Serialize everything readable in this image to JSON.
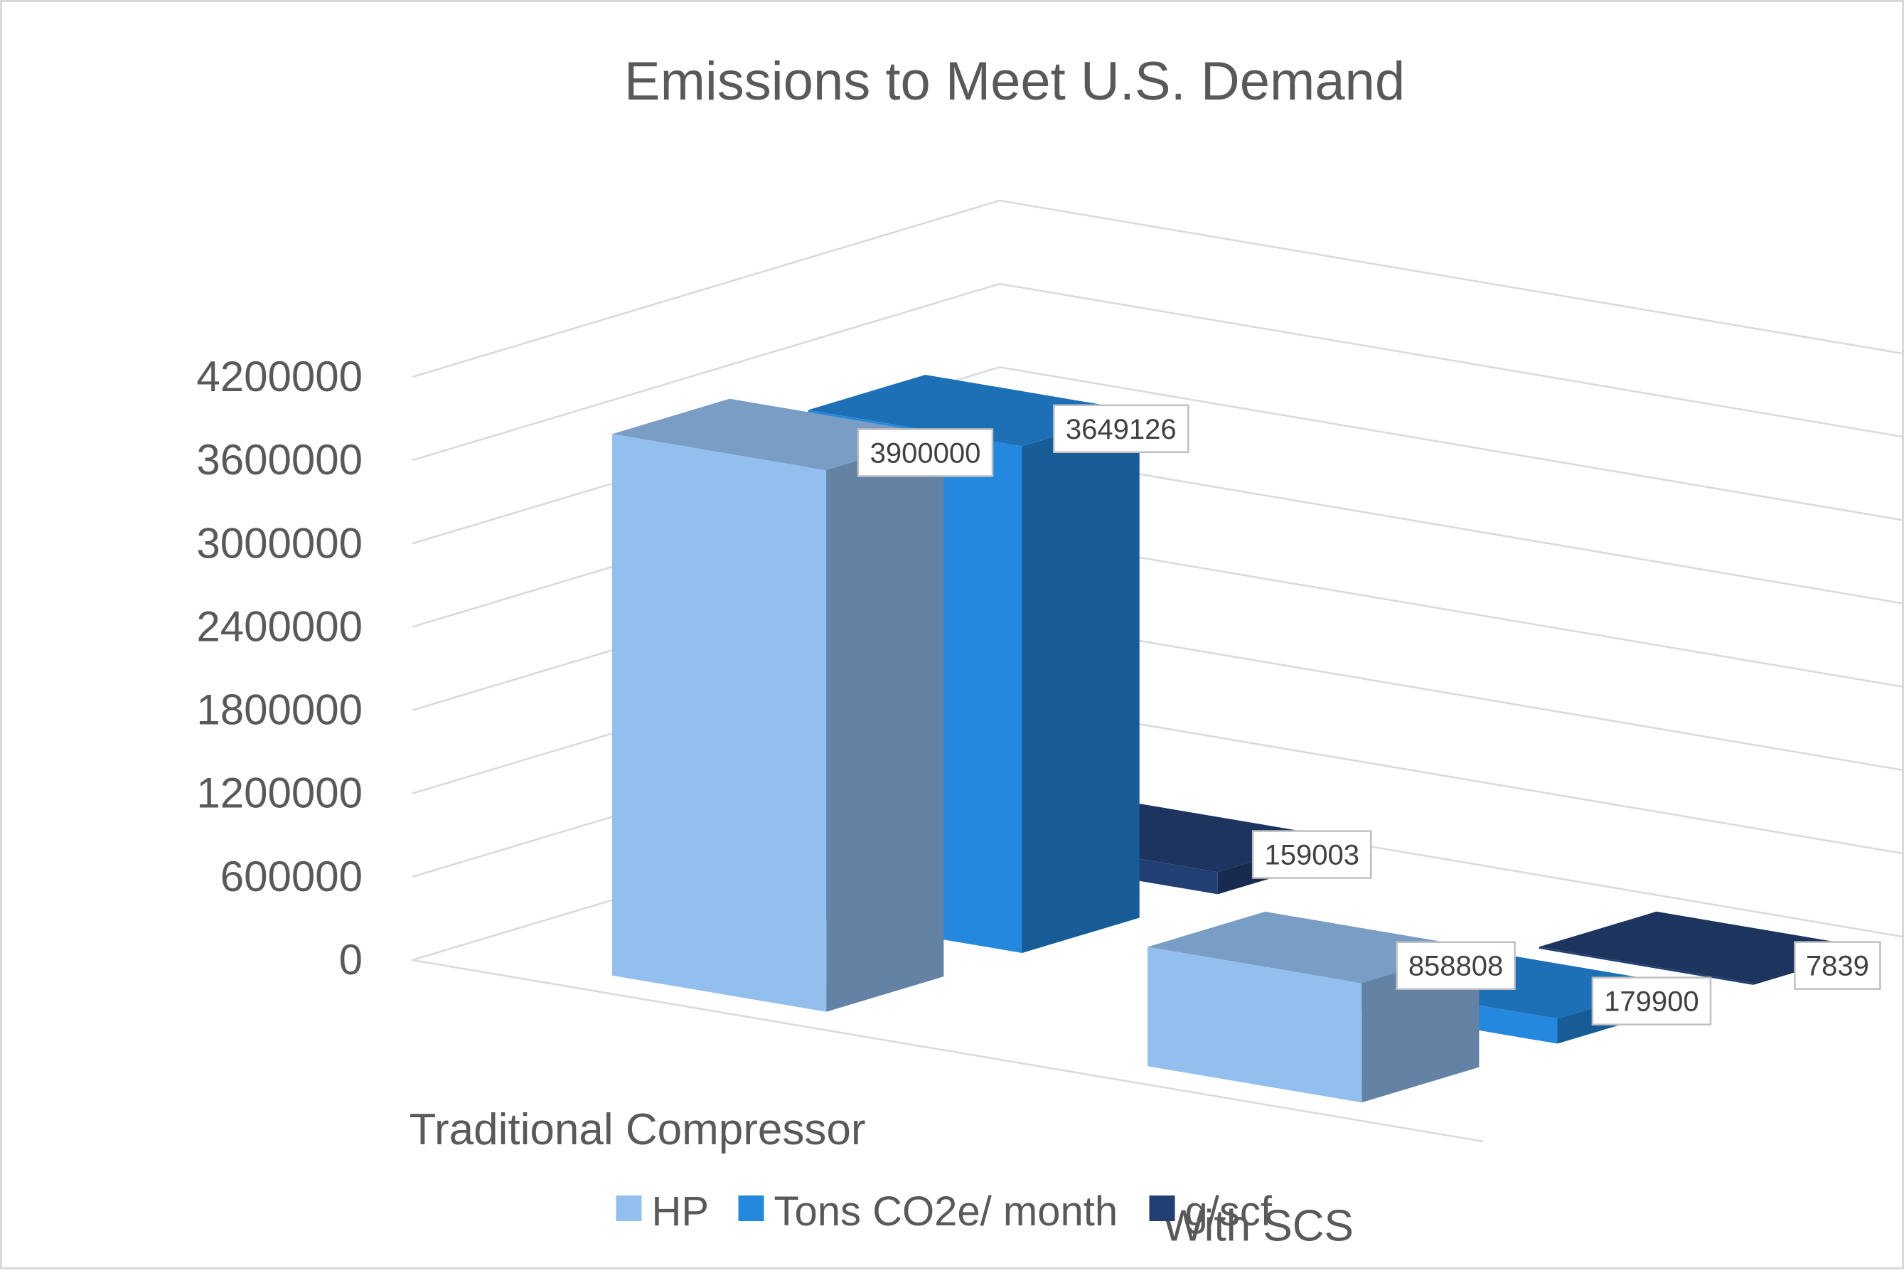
{
  "chart_data": {
    "type": "bar",
    "style": "3d-column",
    "title": "Emissions to Meet U.S. Demand",
    "categories": [
      "Traditional Compressor",
      "With SCS"
    ],
    "series": [
      {
        "name": "HP",
        "values": [
          3900000,
          858808
        ],
        "color": "#93bfef"
      },
      {
        "name": "Tons CO2e/ month",
        "values": [
          3649126,
          179900
        ],
        "color": "#2388de"
      },
      {
        "name": "g/scf",
        "values": [
          159003,
          7839
        ],
        "color": "#223f73"
      }
    ],
    "y_ticks": [
      "0",
      "600000",
      "1200000",
      "1800000",
      "2400000",
      "3000000",
      "3600000",
      "4200000"
    ],
    "ylim": [
      0,
      4200000
    ],
    "grid": true,
    "legend_position": "bottom"
  }
}
